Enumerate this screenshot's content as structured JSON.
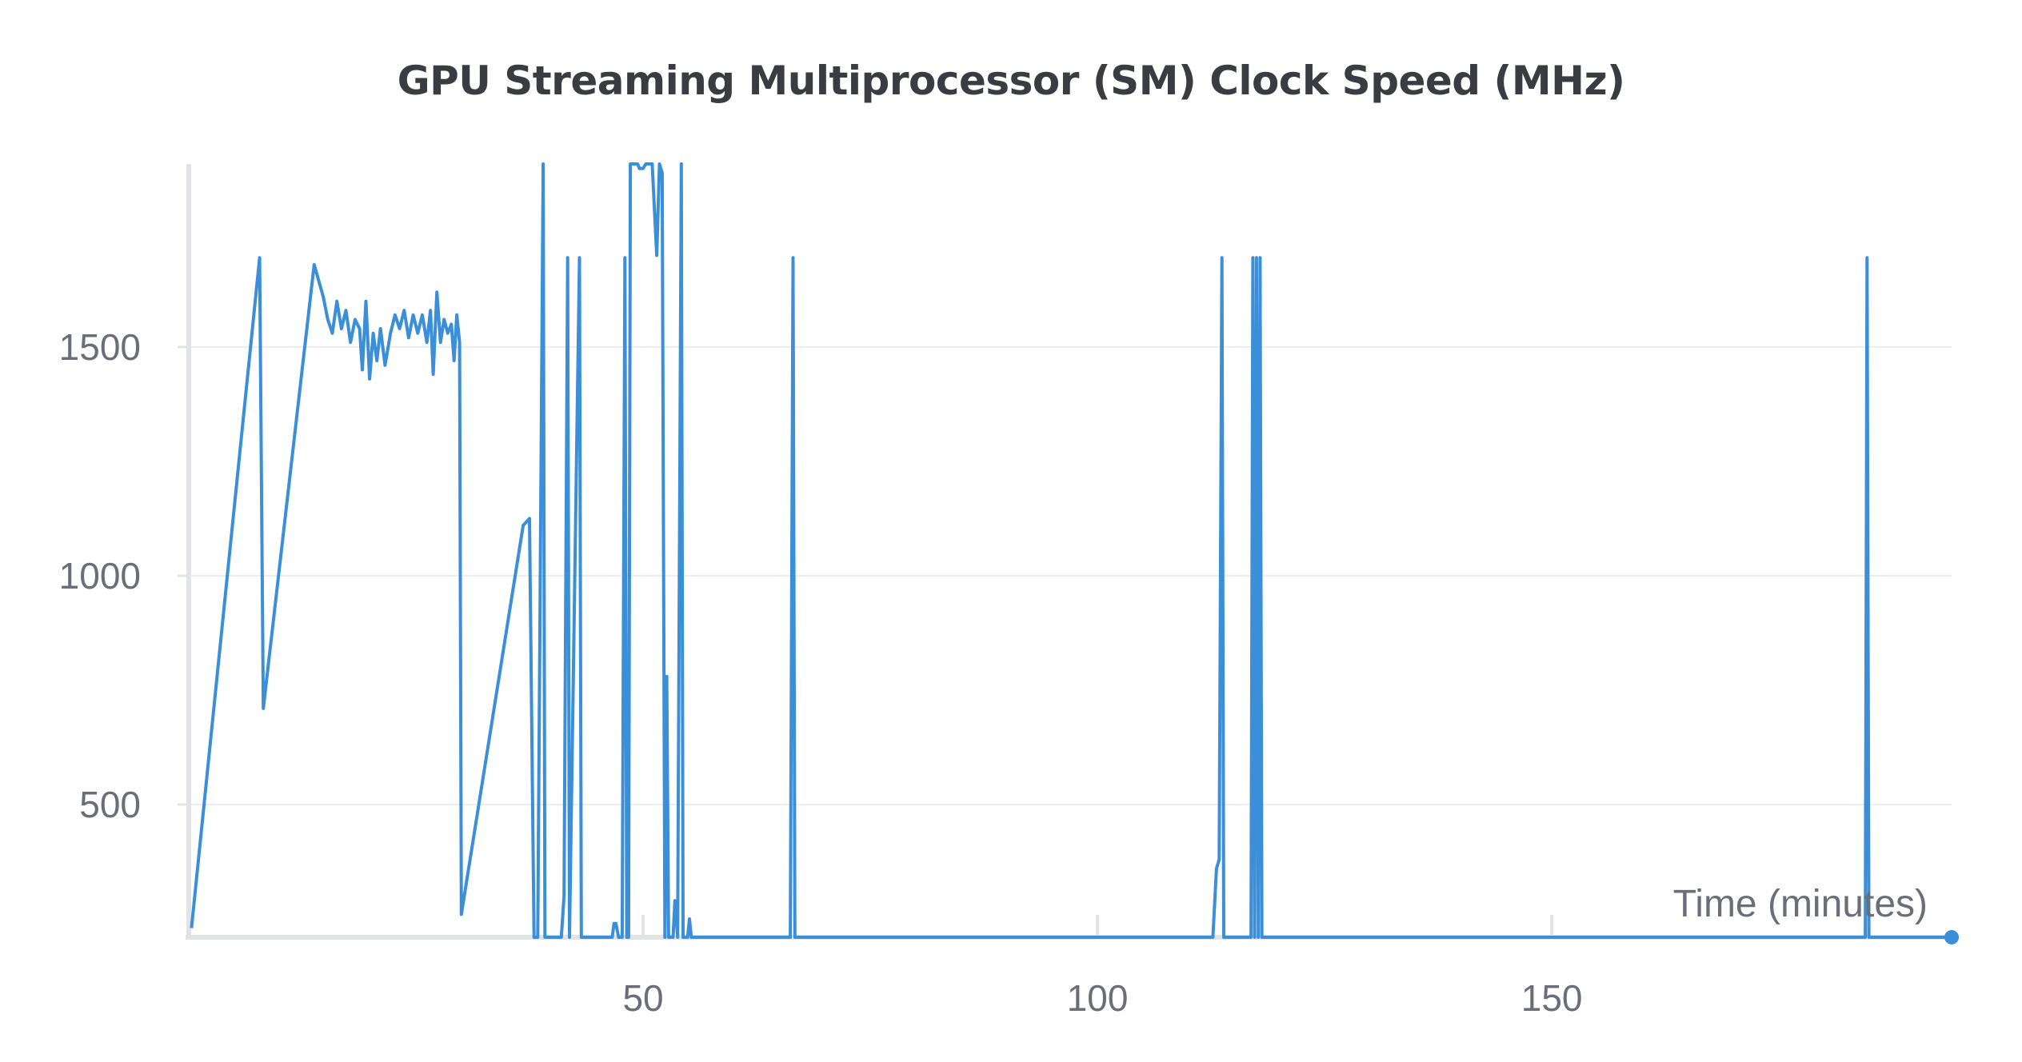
{
  "chart_data": {
    "type": "line",
    "title": "GPU Streaming Multiprocessor (SM) Clock Speed (MHz)",
    "xlabel": "Time (minutes)",
    "ylabel": "",
    "xlim": [
      0,
      194
    ],
    "ylim": [
      210,
      1900
    ],
    "grid": true,
    "x_ticks": [
      50,
      100,
      150
    ],
    "y_ticks": [
      500,
      1000,
      1500
    ],
    "series": [
      {
        "color": "#3b8ed8",
        "points": [
          [
            0.3,
            230
          ],
          [
            7.8,
            1695
          ],
          [
            8.2,
            710
          ],
          [
            13.8,
            1680
          ],
          [
            14.8,
            1610
          ],
          [
            15.3,
            1560
          ],
          [
            15.8,
            1530
          ],
          [
            16.3,
            1600
          ],
          [
            16.8,
            1540
          ],
          [
            17.3,
            1580
          ],
          [
            17.8,
            1510
          ],
          [
            18.3,
            1560
          ],
          [
            18.8,
            1540
          ],
          [
            19.1,
            1450
          ],
          [
            19.5,
            1600
          ],
          [
            19.9,
            1430
          ],
          [
            20.3,
            1530
          ],
          [
            20.7,
            1470
          ],
          [
            21.1,
            1540
          ],
          [
            21.6,
            1460
          ],
          [
            22.2,
            1530
          ],
          [
            22.7,
            1570
          ],
          [
            23.2,
            1540
          ],
          [
            23.7,
            1580
          ],
          [
            24.2,
            1520
          ],
          [
            24.7,
            1570
          ],
          [
            25.2,
            1530
          ],
          [
            25.7,
            1570
          ],
          [
            26.2,
            1510
          ],
          [
            26.6,
            1580
          ],
          [
            26.9,
            1440
          ],
          [
            27.3,
            1620
          ],
          [
            27.7,
            1510
          ],
          [
            28.1,
            1560
          ],
          [
            28.5,
            1530
          ],
          [
            28.9,
            1550
          ],
          [
            29.2,
            1470
          ],
          [
            29.5,
            1570
          ],
          [
            29.8,
            1510
          ],
          [
            30.0,
            260
          ],
          [
            36.8,
            1110
          ],
          [
            37.5,
            1125
          ],
          [
            38.0,
            210
          ],
          [
            38.4,
            210
          ],
          [
            39.0,
            1900
          ],
          [
            39.2,
            210
          ],
          [
            41.0,
            210
          ],
          [
            41.3,
            300
          ],
          [
            41.7,
            1695
          ],
          [
            41.9,
            210
          ],
          [
            43.0,
            1695
          ],
          [
            43.2,
            210
          ],
          [
            46.6,
            210
          ],
          [
            46.8,
            240
          ],
          [
            47.0,
            240
          ],
          [
            47.3,
            210
          ],
          [
            47.7,
            210
          ],
          [
            48.0,
            1695
          ],
          [
            48.2,
            210
          ],
          [
            48.4,
            210
          ],
          [
            48.6,
            1900
          ],
          [
            49.4,
            1900
          ],
          [
            49.6,
            1890
          ],
          [
            50.0,
            1890
          ],
          [
            50.3,
            1900
          ],
          [
            51.0,
            1900
          ],
          [
            51.5,
            1700
          ],
          [
            51.8,
            1900
          ],
          [
            52.1,
            1880
          ],
          [
            52.4,
            210
          ],
          [
            52.6,
            780
          ],
          [
            52.8,
            210
          ],
          [
            53.3,
            210
          ],
          [
            53.5,
            290
          ],
          [
            53.8,
            210
          ],
          [
            54.2,
            1900
          ],
          [
            54.4,
            210
          ],
          [
            54.9,
            210
          ],
          [
            55.1,
            250
          ],
          [
            55.3,
            210
          ],
          [
            66.2,
            210
          ],
          [
            66.5,
            1695
          ],
          [
            66.7,
            210
          ],
          [
            112.7,
            210
          ],
          [
            113.1,
            360
          ],
          [
            113.4,
            380
          ],
          [
            113.7,
            1695
          ],
          [
            113.9,
            210
          ],
          [
            116.9,
            210
          ],
          [
            117.1,
            1695
          ],
          [
            117.3,
            210
          ],
          [
            117.5,
            1695
          ],
          [
            117.7,
            210
          ],
          [
            117.9,
            1695
          ],
          [
            118.1,
            210
          ],
          [
            184.5,
            210
          ],
          [
            184.7,
            1695
          ],
          [
            184.9,
            210
          ],
          [
            193.8,
            210
          ]
        ]
      }
    ]
  }
}
